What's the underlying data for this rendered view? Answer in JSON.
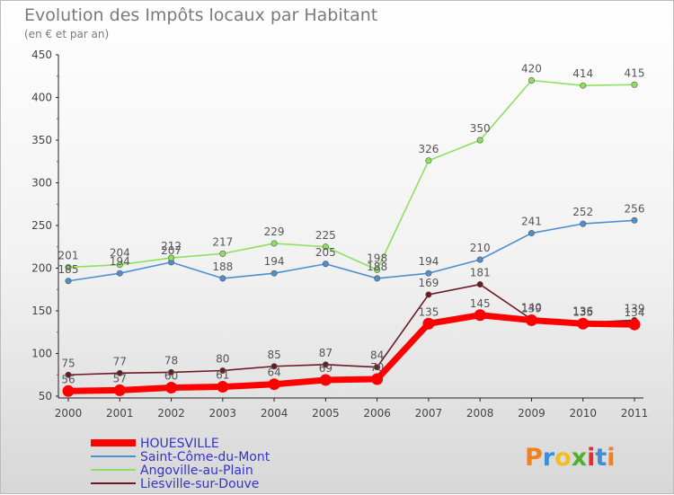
{
  "chart_data": {
    "type": "line",
    "title": "Evolution des Impôts locaux par Habitant",
    "subtitle": "(en € et par an)",
    "x": [
      "2000",
      "2001",
      "2002",
      "2003",
      "2004",
      "2005",
      "2006",
      "2007",
      "2008",
      "2009",
      "2010",
      "2011"
    ],
    "ylim": [
      50,
      450
    ],
    "yticks": [
      50,
      100,
      150,
      200,
      250,
      300,
      350,
      400,
      450
    ],
    "grid": false,
    "legend_position": "bottom-left",
    "series": [
      {
        "name": "HOUESVILLE",
        "color": "#ff0000",
        "values": [
          56,
          57,
          60,
          61,
          64,
          69,
          70,
          135,
          145,
          139,
          135,
          134
        ]
      },
      {
        "name": "Saint-Côme-du-Mont",
        "color": "#4f8fcf",
        "values": [
          185,
          194,
          207,
          188,
          194,
          205,
          188,
          194,
          210,
          241,
          252,
          256
        ]
      },
      {
        "name": "Angoville-au-Plain",
        "color": "#8ee05e",
        "values": [
          201,
          204,
          212,
          217,
          229,
          225,
          198,
          326,
          350,
          420,
          414,
          415
        ]
      },
      {
        "name": "Liesville-sur-Douve",
        "color": "#6b1a24",
        "values": [
          75,
          77,
          78,
          80,
          85,
          87,
          84,
          169,
          181,
          140,
          136,
          139
        ]
      }
    ]
  },
  "branding": {
    "logo_text": "Proxiti",
    "logo_colors": [
      "#f08020",
      "#3a8fd8",
      "#f0c020",
      "#50b030",
      "#e03030",
      "#3a8fd8",
      "#f08020"
    ]
  }
}
